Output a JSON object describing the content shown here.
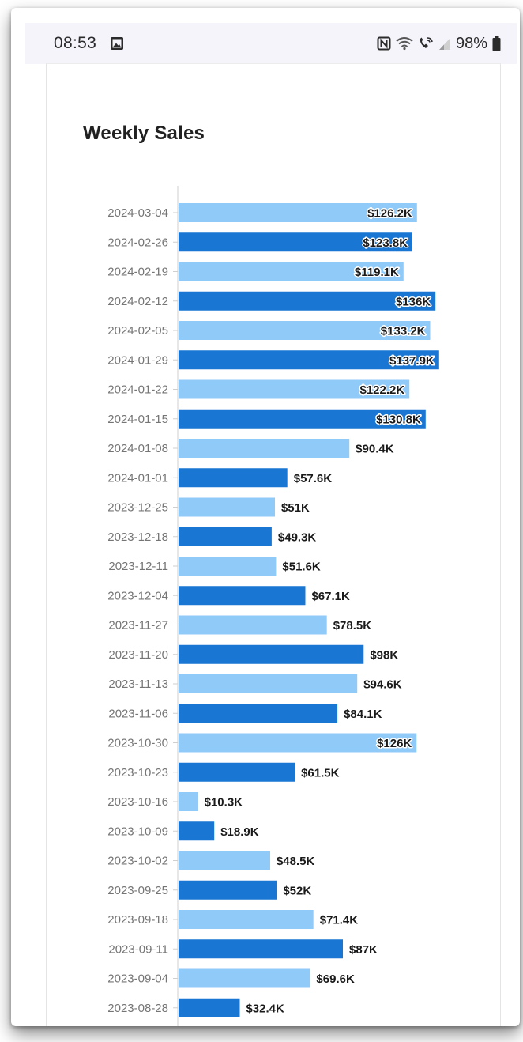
{
  "status_bar": {
    "time": "08:53",
    "battery": "98%",
    "icons": [
      "gallery-icon",
      "nfc-icon",
      "wifi-icon",
      "wifi-calling-icon",
      "signal-icon",
      "battery-icon"
    ]
  },
  "colors": {
    "bar_light": "#90caf9",
    "bar_dark": "#1976d2",
    "axis": "#cfcfcf"
  },
  "chart_data": {
    "type": "bar",
    "orientation": "horizontal",
    "title": "Weekly Sales",
    "categories": [
      "2024-03-04",
      "2024-02-26",
      "2024-02-19",
      "2024-02-12",
      "2024-02-05",
      "2024-01-29",
      "2024-01-22",
      "2024-01-15",
      "2024-01-08",
      "2024-01-01",
      "2023-12-25",
      "2023-12-18",
      "2023-12-11",
      "2023-12-04",
      "2023-11-27",
      "2023-11-20",
      "2023-11-13",
      "2023-11-06",
      "2023-10-30",
      "2023-10-23",
      "2023-10-16",
      "2023-10-09",
      "2023-10-02",
      "2023-09-25",
      "2023-09-18",
      "2023-09-11",
      "2023-09-04",
      "2023-08-28"
    ],
    "values": [
      126.2,
      123.8,
      119.1,
      136,
      133.2,
      137.9,
      122.2,
      130.8,
      90.4,
      57.6,
      51,
      49.3,
      51.6,
      67.1,
      78.5,
      98,
      94.6,
      84.1,
      126,
      61.5,
      10.3,
      18.9,
      48.5,
      52,
      71.4,
      87,
      69.6,
      32.4
    ],
    "labels": [
      "$126.2K",
      "$123.8K",
      "$119.1K",
      "$136K",
      "$133.2K",
      "$137.9K",
      "$122.2K",
      "$130.8K",
      "$90.4K",
      "$57.6K",
      "$51K",
      "$49.3K",
      "$51.6K",
      "$67.1K",
      "$78.5K",
      "$98K",
      "$94.6K",
      "$84.1K",
      "$126K",
      "$61.5K",
      "$10.3K",
      "$18.9K",
      "$48.5K",
      "$52K",
      "$71.4K",
      "$87K",
      "$69.6K",
      "$32.4K"
    ],
    "value_unit": "thousands USD",
    "xlim": [
      0,
      138
    ],
    "grid": false,
    "legend": "none"
  }
}
